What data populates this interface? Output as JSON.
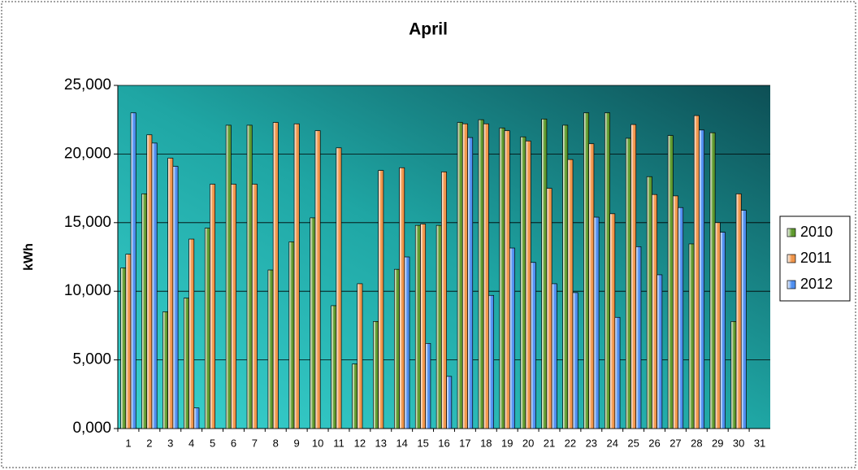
{
  "chart_data": {
    "type": "bar",
    "title": "April",
    "y_label": "kWh",
    "categories": [
      "1",
      "2",
      "3",
      "4",
      "5",
      "6",
      "7",
      "8",
      "9",
      "10",
      "11",
      "12",
      "13",
      "14",
      "15",
      "16",
      "17",
      "18",
      "19",
      "20",
      "21",
      "22",
      "23",
      "24",
      "25",
      "26",
      "27",
      "28",
      "29",
      "30",
      "31"
    ],
    "series": [
      {
        "name": "2010",
        "color": "#5f9a2e",
        "values": [
          11700,
          17100,
          8500,
          9500,
          14600,
          22100,
          22100,
          11550,
          13600,
          15350,
          8950,
          4700,
          7800,
          11600,
          14800,
          14800,
          22300,
          22500,
          21900,
          21250,
          22550,
          22100,
          23000,
          23000,
          21150,
          18350,
          21350,
          13450,
          21550,
          7800,
          null
        ]
      },
      {
        "name": "2011",
        "color": "#f0954a",
        "values": [
          12700,
          21400,
          19700,
          13800,
          17800,
          17800,
          17800,
          22300,
          22200,
          21700,
          20450,
          10550,
          18800,
          19000,
          14900,
          18700,
          22200,
          22200,
          21700,
          20950,
          17500,
          19600,
          20750,
          15650,
          22150,
          17050,
          16950,
          22800,
          15000,
          17100,
          null
        ]
      },
      {
        "name": "2012",
        "color": "#4f8ff0",
        "values": [
          23000,
          20800,
          19100,
          1500,
          null,
          null,
          null,
          null,
          null,
          null,
          null,
          null,
          null,
          12500,
          6200,
          3800,
          21200,
          9700,
          13150,
          12100,
          10550,
          9900,
          15400,
          8100,
          13250,
          11200,
          16100,
          21750,
          14300,
          15900,
          null
        ]
      }
    ],
    "ylim": [
      0,
      25000
    ],
    "yticks": [
      {
        "value": 0,
        "label": "0,000"
      },
      {
        "value": 5000,
        "label": "5,000"
      },
      {
        "value": 10000,
        "label": "10,000"
      },
      {
        "value": 15000,
        "label": "15,000"
      },
      {
        "value": 20000,
        "label": "20,000"
      },
      {
        "value": 25000,
        "label": "25,000"
      }
    ],
    "grid": true,
    "legend": "right"
  }
}
